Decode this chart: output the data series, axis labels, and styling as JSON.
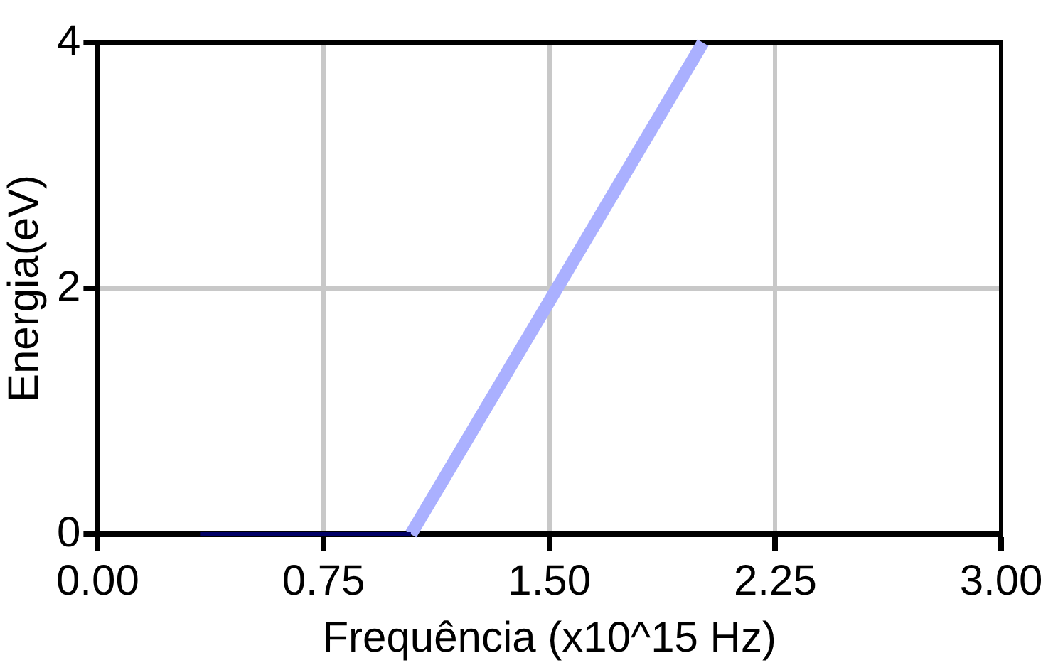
{
  "chart_data": {
    "type": "line",
    "xlabel": "Frequência (x10^15 Hz)",
    "ylabel": "Energia(eV)",
    "series": [
      {
        "color": "#000066",
        "x": [
          0.34,
          1.04
        ],
        "values": [
          0,
          0
        ]
      },
      {
        "color": "#aab0ff",
        "x": [
          1.04,
          2.01
        ],
        "values": [
          0,
          4
        ]
      }
    ],
    "xlim": [
      0,
      3
    ],
    "xticks": [
      {
        "value": 0,
        "label": "0.00"
      },
      {
        "value": 0.75,
        "label": "0.75"
      },
      {
        "value": 1.5,
        "label": "1.50"
      },
      {
        "value": 2.25,
        "label": "2.25"
      },
      {
        "value": 3,
        "label": "3.00"
      }
    ],
    "ylim": [
      0,
      4
    ],
    "yticks": [
      0,
      2,
      4
    ],
    "grid": true,
    "legend": false,
    "marker": "none",
    "line_style": "solid"
  }
}
